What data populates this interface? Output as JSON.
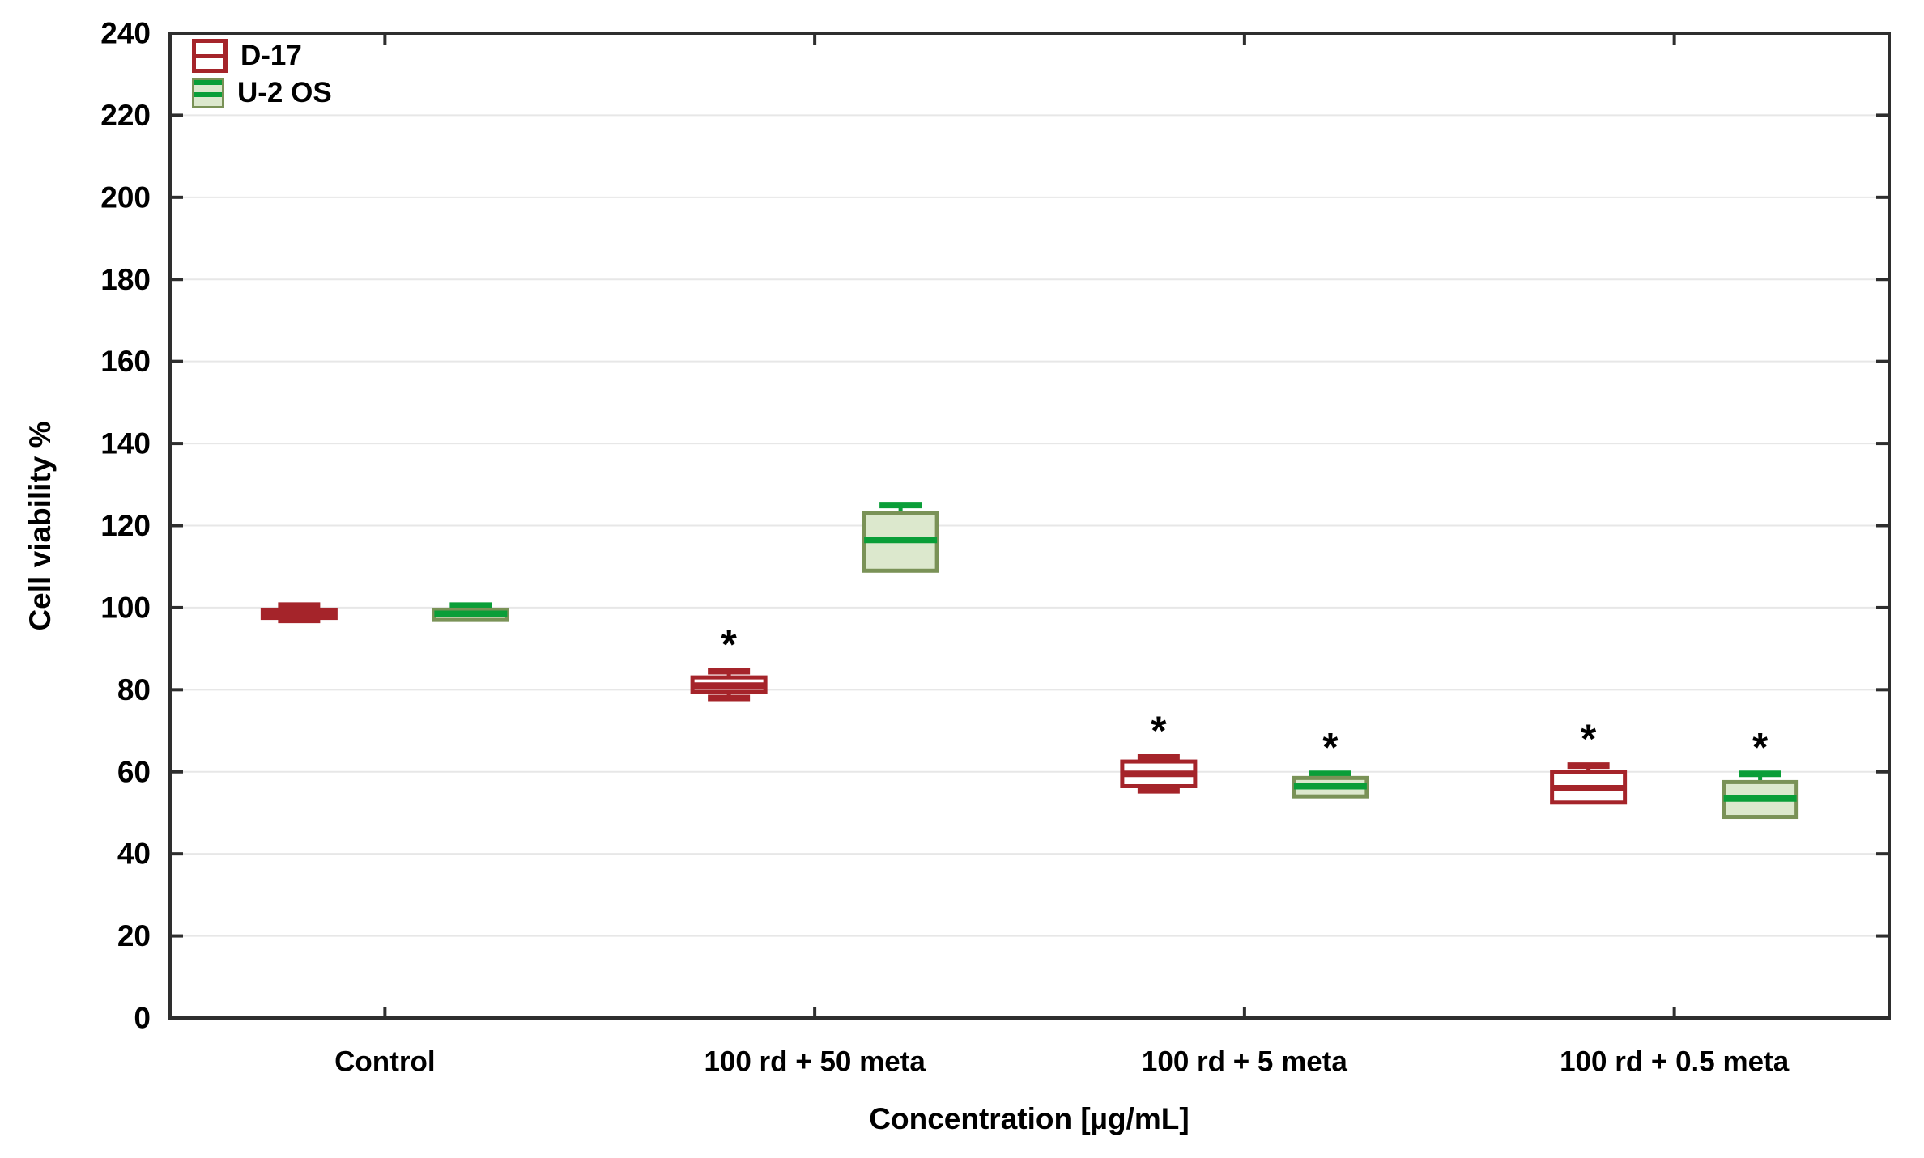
{
  "figure": {
    "background": "#ffffff",
    "significance_marker": "*",
    "text_color": "#000000"
  },
  "chart_data": {
    "type": "boxplot",
    "title": "",
    "xlabel": "Concentration [µg/mL]",
    "ylabel": "Cell viability %",
    "ylim": [
      0,
      240
    ],
    "ytick_step": 20,
    "ytick_labels": [
      "0",
      "20",
      "40",
      "60",
      "80",
      "100",
      "120",
      "140",
      "160",
      "180",
      "200",
      "220",
      "240"
    ],
    "categories": [
      "Control",
      "100 rd + 50 meta",
      "100 rd + 5 meta",
      "100 rd + 0.5 meta"
    ],
    "grid": "horizontal",
    "gridline_color": "#e7e7e7",
    "frame_color": "#2e2e2e",
    "legend_position": "top-left-inside",
    "series": [
      {
        "name": "D-17",
        "box_fill": "#ffffff",
        "box_stroke": "#a5242a",
        "median_color": "#a5242a",
        "whisker_color": "#a5242a",
        "data": [
          {
            "category": "Control",
            "median": 98.5,
            "q1": 97.5,
            "q3": 99.5,
            "whisker_low": 97,
            "whisker_high": 100.5,
            "significant": false
          },
          {
            "category": "100 rd + 50 meta",
            "median": 81,
            "q1": 79.5,
            "q3": 83,
            "whisker_low": 78,
            "whisker_high": 84.5,
            "significant": true
          },
          {
            "category": "100 rd + 5 meta",
            "median": 59.5,
            "q1": 56.5,
            "q3": 62.5,
            "whisker_low": 55.5,
            "whisker_high": 63.5,
            "significant": true
          },
          {
            "category": "100 rd + 0.5 meta",
            "median": 56,
            "q1": 52.5,
            "q3": 60,
            "whisker_low": 52.5,
            "whisker_high": 61.5,
            "significant": true
          }
        ]
      },
      {
        "name": "U-2 OS",
        "box_fill": "#dce8cd",
        "box_stroke": "#7a9257",
        "median_color": "#0a9e38",
        "whisker_color": "#0a9e38",
        "data": [
          {
            "category": "Control",
            "median": 98.5,
            "q1": 97,
            "q3": 99.5,
            "whisker_low": 97,
            "whisker_high": 100.5,
            "significant": false
          },
          {
            "category": "100 rd + 50 meta",
            "median": 116.5,
            "q1": 109,
            "q3": 123,
            "whisker_low": 109,
            "whisker_high": 125,
            "significant": false
          },
          {
            "category": "100 rd + 5 meta",
            "median": 56.5,
            "q1": 54,
            "q3": 58.5,
            "whisker_low": 54,
            "whisker_high": 59.5,
            "significant": true
          },
          {
            "category": "100 rd + 0.5 meta",
            "median": 53.5,
            "q1": 49,
            "q3": 57.5,
            "whisker_low": 49,
            "whisker_high": 59.5,
            "significant": true
          }
        ]
      }
    ]
  }
}
